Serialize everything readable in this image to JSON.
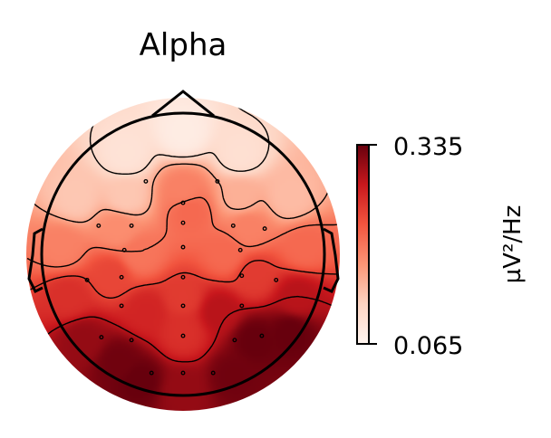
{
  "chart_data": {
    "type": "heatmap",
    "title": "Alpha",
    "colorbar": {
      "label": "µV²/Hz",
      "max_label": "0.335",
      "min_label": "0.065",
      "range": [
        0.065,
        0.335
      ],
      "colormap": "Reds",
      "colors": [
        "#fff5f0",
        "#fdd4c2",
        "#fc9576",
        "#f2553f",
        "#c9181d",
        "#67000d"
      ]
    },
    "sensors": [
      {
        "x": -0.26,
        "y": 0.51
      },
      {
        "x": 0.24,
        "y": 0.51
      },
      {
        "x": 0.0,
        "y": 0.36
      },
      {
        "x": -0.59,
        "y": 0.2
      },
      {
        "x": -0.36,
        "y": 0.2
      },
      {
        "x": 0.0,
        "y": 0.22
      },
      {
        "x": 0.35,
        "y": 0.2
      },
      {
        "x": 0.57,
        "y": 0.18
      },
      {
        "x": -0.41,
        "y": 0.03
      },
      {
        "x": 0.0,
        "y": 0.05
      },
      {
        "x": 0.4,
        "y": 0.03
      },
      {
        "x": -0.67,
        "y": -0.18
      },
      {
        "x": -0.43,
        "y": -0.16
      },
      {
        "x": 0.0,
        "y": -0.16
      },
      {
        "x": 0.41,
        "y": -0.15
      },
      {
        "x": 0.65,
        "y": -0.18
      },
      {
        "x": -0.43,
        "y": -0.36
      },
      {
        "x": 0.0,
        "y": -0.36
      },
      {
        "x": 0.41,
        "y": -0.36
      },
      {
        "x": -0.57,
        "y": -0.58
      },
      {
        "x": -0.36,
        "y": -0.6
      },
      {
        "x": 0.0,
        "y": -0.57
      },
      {
        "x": 0.36,
        "y": -0.6
      },
      {
        "x": 0.55,
        "y": -0.57
      },
      {
        "x": -0.22,
        "y": -0.83
      },
      {
        "x": 0.0,
        "y": -0.83
      },
      {
        "x": 0.21,
        "y": -0.83
      }
    ],
    "power_field": [
      {
        "x": 0.0,
        "y": 0.85,
        "v": 0.08
      },
      {
        "x": -0.4,
        "y": 0.7,
        "v": 0.095
      },
      {
        "x": 0.4,
        "y": 0.7,
        "v": 0.1
      },
      {
        "x": 0.0,
        "y": 0.45,
        "v": 0.19
      },
      {
        "x": 0.05,
        "y": 0.3,
        "v": 0.21
      },
      {
        "x": -0.4,
        "y": 0.4,
        "v": 0.13
      },
      {
        "x": 0.4,
        "y": 0.4,
        "v": 0.15
      },
      {
        "x": -0.75,
        "y": 0.4,
        "v": 0.13
      },
      {
        "x": 0.75,
        "y": 0.4,
        "v": 0.14
      },
      {
        "x": -0.45,
        "y": 0.18,
        "v": 0.18
      },
      {
        "x": 0.45,
        "y": 0.18,
        "v": 0.19
      },
      {
        "x": -0.85,
        "y": 0.05,
        "v": 0.19
      },
      {
        "x": 0.85,
        "y": 0.05,
        "v": 0.21
      },
      {
        "x": -0.3,
        "y": 0.0,
        "v": 0.2
      },
      {
        "x": 0.3,
        "y": 0.0,
        "v": 0.21
      },
      {
        "x": -0.5,
        "y": -0.15,
        "v": 0.24
      },
      {
        "x": 0.5,
        "y": -0.15,
        "v": 0.25
      },
      {
        "x": -0.8,
        "y": -0.3,
        "v": 0.26
      },
      {
        "x": 0.8,
        "y": -0.3,
        "v": 0.29
      },
      {
        "x": -0.25,
        "y": -0.4,
        "v": 0.27
      },
      {
        "x": 0.25,
        "y": -0.4,
        "v": 0.29
      },
      {
        "x": 0.0,
        "y": -0.3,
        "v": 0.25
      },
      {
        "x": 0.0,
        "y": -0.55,
        "v": 0.26
      },
      {
        "x": -0.45,
        "y": -0.75,
        "v": 0.33
      },
      {
        "x": -0.3,
        "y": -0.88,
        "v": 0.335
      },
      {
        "x": 0.5,
        "y": -0.6,
        "v": 0.335
      },
      {
        "x": 0.35,
        "y": -0.85,
        "v": 0.33
      },
      {
        "x": 0.75,
        "y": -0.55,
        "v": 0.335
      },
      {
        "x": -0.7,
        "y": -0.6,
        "v": 0.31
      },
      {
        "x": 0.0,
        "y": -0.95,
        "v": 0.31
      }
    ],
    "contour_levels": [
      0.11,
      0.155,
      0.2,
      0.245,
      0.29
    ],
    "grid": false
  }
}
